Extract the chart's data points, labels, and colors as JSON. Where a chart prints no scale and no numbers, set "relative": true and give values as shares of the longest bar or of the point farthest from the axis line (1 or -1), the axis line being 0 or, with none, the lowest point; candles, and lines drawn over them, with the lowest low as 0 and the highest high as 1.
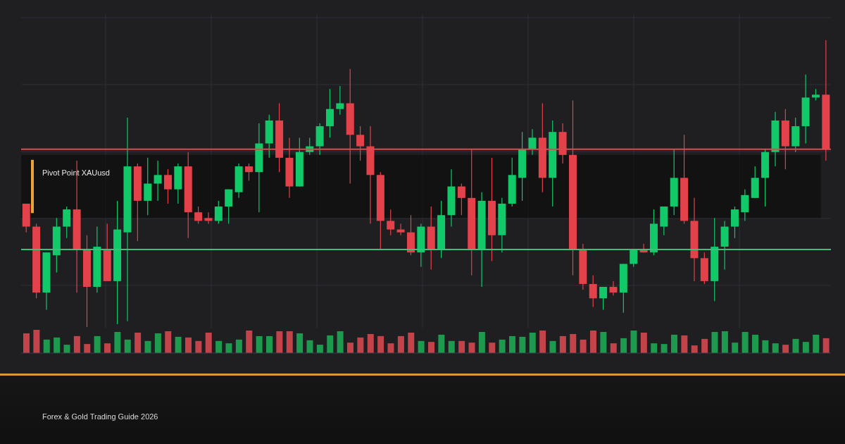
{
  "chart_data": [
    {
      "type": "candlestick",
      "relative": true,
      "grid": true,
      "categories": [
        null,
        null,
        null,
        null,
        null,
        null,
        null,
        null,
        null,
        null,
        null,
        null,
        null,
        null,
        null,
        null,
        null,
        null,
        null,
        null,
        null,
        null,
        null,
        null,
        null,
        null,
        null,
        null,
        null,
        null,
        null,
        null,
        null,
        null,
        null,
        null,
        null,
        null,
        null,
        null,
        null,
        null,
        null,
        null,
        null,
        null,
        null,
        null,
        null,
        null,
        null,
        null,
        null,
        null,
        null,
        null,
        null,
        null,
        null,
        null,
        null,
        null,
        null,
        null,
        null,
        null,
        null,
        null,
        null,
        null,
        null,
        null,
        null,
        null,
        null,
        null,
        null,
        null,
        null,
        null
      ],
      "ohlc": [
        [
          0.43,
          0.43,
          0.33,
          0.35
        ],
        [
          0.35,
          0.36,
          0.1,
          0.12
        ],
        [
          0.12,
          0.26,
          0.06,
          0.26
        ],
        [
          0.25,
          0.38,
          0.19,
          0.35
        ],
        [
          0.35,
          0.42,
          0.31,
          0.41
        ],
        [
          0.41,
          0.58,
          0.12,
          0.27
        ],
        [
          0.27,
          0.32,
          0,
          0.14
        ],
        [
          0.14,
          0.35,
          0.12,
          0.28
        ],
        [
          0.27,
          0.36,
          0.16,
          0.16
        ],
        [
          0.16,
          0.44,
          0.01,
          0.34
        ],
        [
          0.33,
          0.73,
          0.02,
          0.56
        ],
        [
          0.56,
          0.57,
          0.3,
          0.44
        ],
        [
          0.44,
          0.59,
          0.39,
          0.5
        ],
        [
          0.5,
          0.58,
          0.44,
          0.53
        ],
        [
          0.53,
          0.55,
          0.43,
          0.48
        ],
        [
          0.48,
          0.57,
          0.43,
          0.56
        ],
        [
          0.56,
          0.61,
          0.31,
          0.4
        ],
        [
          0.4,
          0.42,
          0.36,
          0.37
        ],
        [
          0.38,
          0.4,
          0.36,
          0.37
        ],
        [
          0.37,
          0.44,
          0.36,
          0.42
        ],
        [
          0.42,
          0.48,
          0.36,
          0.48
        ],
        [
          0.47,
          0.57,
          0.45,
          0.56
        ],
        [
          0.56,
          0.57,
          0.51,
          0.54
        ],
        [
          0.54,
          0.71,
          0.4,
          0.64
        ],
        [
          0.64,
          0.74,
          0.59,
          0.72
        ],
        [
          0.72,
          0.78,
          0.54,
          0.59
        ],
        [
          0.59,
          0.66,
          0.45,
          0.49
        ],
        [
          0.49,
          0.66,
          0.49,
          0.61
        ],
        [
          0.61,
          0.66,
          0.6,
          0.63
        ],
        [
          0.63,
          0.71,
          0.6,
          0.7
        ],
        [
          0.7,
          0.83,
          0.66,
          0.76
        ],
        [
          0.76,
          0.84,
          0.74,
          0.78
        ],
        [
          0.78,
          0.9,
          0.5,
          0.67
        ],
        [
          0.67,
          0.7,
          0.58,
          0.63
        ],
        [
          0.63,
          0.7,
          0.36,
          0.53
        ],
        [
          0.53,
          0.54,
          0.27,
          0.37
        ],
        [
          0.37,
          0.41,
          0.32,
          0.34
        ],
        [
          0.34,
          0.36,
          0.32,
          0.33
        ],
        [
          0.33,
          0.39,
          0.25,
          0.26
        ],
        [
          0.26,
          0.36,
          0.21,
          0.35
        ],
        [
          0.35,
          0.42,
          0.2,
          0.27
        ],
        [
          0.27,
          0.44,
          0.24,
          0.39
        ],
        [
          0.39,
          0.55,
          0.35,
          0.49
        ],
        [
          0.49,
          0.5,
          0.39,
          0.45
        ],
        [
          0.45,
          0.62,
          0.18,
          0.27
        ],
        [
          0.27,
          0.47,
          0.14,
          0.44
        ],
        [
          0.44,
          0.59,
          0.23,
          0.32
        ],
        [
          0.32,
          0.45,
          0.26,
          0.43
        ],
        [
          0.43,
          0.59,
          0.42,
          0.53
        ],
        [
          0.52,
          0.68,
          0.44,
          0.62
        ],
        [
          0.62,
          0.69,
          0.6,
          0.66
        ],
        [
          0.66,
          0.78,
          0.47,
          0.52
        ],
        [
          0.52,
          0.72,
          0.42,
          0.68
        ],
        [
          0.68,
          0.71,
          0.57,
          0.6
        ],
        [
          0.6,
          0.79,
          0.18,
          0.27
        ],
        [
          0.27,
          0.29,
          0.13,
          0.15
        ],
        [
          0.15,
          0.18,
          0.07,
          0.1
        ],
        [
          0.1,
          0.14,
          0.06,
          0.14
        ],
        [
          0.14,
          0.16,
          0.11,
          0.12
        ],
        [
          0.12,
          0.22,
          0.05,
          0.22
        ],
        [
          0.22,
          0.27,
          0.21,
          0.27
        ],
        [
          0.27,
          0.29,
          0.26,
          0.26
        ],
        [
          0.26,
          0.41,
          0.25,
          0.36
        ],
        [
          0.35,
          0.42,
          0.32,
          0.42
        ],
        [
          0.42,
          0.62,
          0.39,
          0.52
        ],
        [
          0.52,
          0.67,
          0.36,
          0.37
        ],
        [
          0.37,
          0.45,
          0.16,
          0.24
        ],
        [
          0.24,
          0.26,
          0.15,
          0.16
        ],
        [
          0.16,
          0.38,
          0.09,
          0.28
        ],
        [
          0.28,
          0.37,
          0.2,
          0.35
        ],
        [
          0.35,
          0.42,
          0.31,
          0.41
        ],
        [
          0.4,
          0.48,
          0.37,
          0.46
        ],
        [
          0.45,
          0.56,
          0.45,
          0.52
        ],
        [
          0.52,
          0.62,
          0.42,
          0.61
        ],
        [
          0.61,
          0.75,
          0.56,
          0.72
        ],
        [
          0.72,
          0.76,
          0.55,
          0.63
        ],
        [
          0.63,
          0.73,
          0.61,
          0.7
        ],
        [
          0.7,
          0.88,
          0.64,
          0.8
        ],
        [
          0.8,
          0.83,
          0.79,
          0.81
        ],
        [
          0.81,
          1,
          0.58,
          0.62
        ]
      ],
      "colors": [
        "#e3424b",
        "#e3424b",
        "#12c96a",
        "#12c96a",
        "#12c96a",
        "#e3424b",
        "#e3424b",
        "#12c96a",
        "#e3424b",
        "#12c96a",
        "#12c96a",
        "#e3424b",
        "#12c96a",
        "#12c96a",
        "#e3424b",
        "#12c96a",
        "#e3424b",
        "#e3424b",
        "#e3424b",
        "#12c96a",
        "#12c96a",
        "#12c96a",
        "#e3424b",
        "#12c96a",
        "#12c96a",
        "#e3424b",
        "#e3424b",
        "#12c96a",
        "#12c96a",
        "#12c96a",
        "#12c96a",
        "#12c96a",
        "#e3424b",
        "#e3424b",
        "#e3424b",
        "#e3424b",
        "#e3424b",
        "#e3424b",
        "#e3424b",
        "#12c96a",
        "#e3424b",
        "#12c96a",
        "#12c96a",
        "#e3424b",
        "#e3424b",
        "#12c96a",
        "#e3424b",
        "#12c96a",
        "#12c96a",
        "#12c96a",
        "#12c96a",
        "#e3424b",
        "#12c96a",
        "#e3424b",
        "#e3424b",
        "#e3424b",
        "#e3424b",
        "#12c96a",
        "#e3424b",
        "#12c96a",
        "#12c96a",
        "#e3424b",
        "#12c96a",
        "#12c96a",
        "#12c96a",
        "#e3424b",
        "#e3424b",
        "#e3424b",
        "#12c96a",
        "#12c96a",
        "#12c96a",
        "#12c96a",
        "#12c96a",
        "#12c96a",
        "#12c96a",
        "#e3424b",
        "#12c96a",
        "#12c96a",
        "#12c96a",
        "#e3424b"
      ],
      "ref_lines": [
        {
          "axis": "y",
          "value": 0.62,
          "color": "#e0474f"
        },
        {
          "axis": "y",
          "value": 0.27,
          "color": "#3cc17c"
        }
      ],
      "bands": [
        {
          "axis": "y",
          "from": 0.38,
          "to": 0.6,
          "label": "Pivot Point XAUusd",
          "color": "#0b0b0b"
        }
      ],
      "annotations": [
        "Forex & Gold Trading Guide 2026"
      ]
    },
    {
      "type": "bar",
      "relative": true,
      "categories": [
        null,
        null,
        null,
        null,
        null,
        null,
        null,
        null,
        null,
        null,
        null,
        null,
        null,
        null,
        null,
        null,
        null,
        null,
        null,
        null,
        null,
        null,
        null,
        null,
        null,
        null,
        null,
        null,
        null,
        null,
        null,
        null,
        null,
        null,
        null,
        null,
        null,
        null,
        null,
        null,
        null,
        null,
        null,
        null,
        null,
        null,
        null,
        null,
        null,
        null,
        null,
        null,
        null,
        null,
        null,
        null,
        null,
        null,
        null,
        null,
        null,
        null,
        null,
        null,
        null,
        null,
        null,
        null,
        null,
        null,
        null,
        null,
        null,
        null,
        null,
        null,
        null,
        null,
        null,
        null
      ],
      "values": [
        0.85,
        1,
        0.58,
        0.67,
        0.36,
        0.73,
        0.39,
        0.73,
        0.42,
        0.91,
        0.58,
        0.88,
        0.52,
        0.85,
        0.94,
        0.7,
        0.67,
        0.52,
        0.88,
        0.52,
        0.42,
        0.58,
        0.97,
        0.73,
        0.73,
        0.94,
        0.94,
        0.85,
        0.55,
        0.36,
        0.76,
        0.94,
        0.45,
        0.67,
        0.82,
        0.73,
        0.42,
        0.73,
        0.88,
        0.52,
        0.48,
        0.79,
        0.52,
        0.52,
        0.45,
        0.91,
        0.45,
        0.58,
        0.73,
        0.7,
        0.88,
        0.97,
        0.52,
        0.73,
        0.82,
        0.58,
        0.97,
        0.91,
        0.42,
        0.64,
        0.97,
        0.88,
        0.42,
        0.39,
        0.79,
        0.76,
        0.33,
        0.61,
        0.91,
        0.94,
        0.45,
        0.91,
        0.79,
        0.55,
        0.42,
        0.36,
        0.61,
        0.48,
        0.79,
        0.64
      ],
      "colors": [
        "#c2434a",
        "#c2434a",
        "#1e9a4e",
        "#1e9a4e",
        "#1e9a4e",
        "#c2434a",
        "#c2434a",
        "#1e9a4e",
        "#c2434a",
        "#1e9a4e",
        "#1e9a4e",
        "#c2434a",
        "#1e9a4e",
        "#1e9a4e",
        "#c2434a",
        "#1e9a4e",
        "#c2434a",
        "#c2434a",
        "#c2434a",
        "#1e9a4e",
        "#1e9a4e",
        "#1e9a4e",
        "#c2434a",
        "#1e9a4e",
        "#1e9a4e",
        "#c2434a",
        "#c2434a",
        "#1e9a4e",
        "#1e9a4e",
        "#1e9a4e",
        "#1e9a4e",
        "#1e9a4e",
        "#c2434a",
        "#c2434a",
        "#c2434a",
        "#c2434a",
        "#c2434a",
        "#c2434a",
        "#c2434a",
        "#1e9a4e",
        "#c2434a",
        "#1e9a4e",
        "#1e9a4e",
        "#c2434a",
        "#c2434a",
        "#1e9a4e",
        "#c2434a",
        "#1e9a4e",
        "#1e9a4e",
        "#1e9a4e",
        "#1e9a4e",
        "#c2434a",
        "#1e9a4e",
        "#c2434a",
        "#c2434a",
        "#c2434a",
        "#c2434a",
        "#1e9a4e",
        "#c2434a",
        "#1e9a4e",
        "#1e9a4e",
        "#c2434a",
        "#1e9a4e",
        "#1e9a4e",
        "#1e9a4e",
        "#c2434a",
        "#c2434a",
        "#c2434a",
        "#1e9a4e",
        "#1e9a4e",
        "#1e9a4e",
        "#1e9a4e",
        "#1e9a4e",
        "#1e9a4e",
        "#1e9a4e",
        "#c2434a",
        "#1e9a4e",
        "#1e9a4e",
        "#1e9a4e",
        "#c2434a"
      ]
    }
  ]
}
